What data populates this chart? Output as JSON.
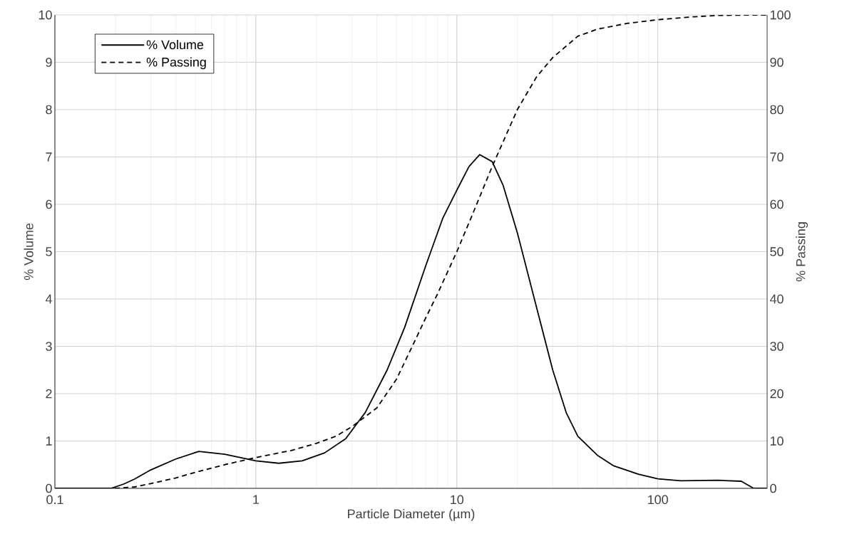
{
  "chart_data": {
    "type": "line",
    "xlabel": "Particle Diameter (µm)",
    "ylabel": "% Volume",
    "y2label": "% Passing",
    "log": "x",
    "xlim": [
      0.1,
      350
    ],
    "xticks": [
      0.1,
      1,
      10,
      100
    ],
    "ylim": [
      0,
      10
    ],
    "yticks": [
      0,
      1,
      2,
      3,
      4,
      5,
      6,
      7,
      8,
      9,
      10
    ],
    "y2lim": [
      0,
      100
    ],
    "y2ticks": [
      0,
      10,
      20,
      30,
      40,
      50,
      60,
      70,
      80,
      90,
      100
    ],
    "grid": true,
    "legend": "top left",
    "marker": "none",
    "series": [
      {
        "name": "% Volume",
        "color": "#000000",
        "line_style": "solid",
        "x": [
          0.1,
          0.19,
          0.22,
          0.25,
          0.3,
          0.4,
          0.52,
          0.7,
          1.0,
          1.3,
          1.7,
          2.2,
          2.8,
          3.5,
          4.5,
          5.5,
          7,
          8.5,
          10,
          11.5,
          13,
          15,
          17,
          20,
          25,
          30,
          35,
          40,
          50,
          60,
          80,
          100,
          130,
          200,
          260,
          300,
          350
        ],
        "values": [
          0,
          0,
          0.09,
          0.2,
          0.39,
          0.62,
          0.78,
          0.72,
          0.58,
          0.53,
          0.58,
          0.75,
          1.05,
          1.6,
          2.5,
          3.4,
          4.7,
          5.7,
          6.3,
          6.8,
          7.05,
          6.9,
          6.4,
          5.4,
          3.8,
          2.5,
          1.6,
          1.1,
          0.7,
          0.48,
          0.3,
          0.2,
          0.16,
          0.17,
          0.15,
          0,
          0
        ]
      },
      {
        "name": "% Passing",
        "color": "#000000",
        "line_style": "dashed",
        "axis": "y2",
        "x": [
          0.1,
          0.2,
          0.25,
          0.3,
          0.4,
          0.5,
          0.7,
          1,
          1.5,
          2,
          2.5,
          3,
          4,
          5,
          6,
          7,
          8,
          10,
          12,
          15,
          20,
          25,
          30,
          40,
          50,
          70,
          100,
          150,
          200,
          300,
          350
        ],
        "values": [
          0,
          0,
          0.3,
          1,
          2.2,
          3.4,
          5,
          6.5,
          8,
          9.5,
          11,
          13,
          17,
          23,
          30,
          36,
          41,
          50,
          58,
          68,
          80,
          87,
          91,
          95.5,
          97,
          98.2,
          99,
          99.6,
          99.9,
          100,
          100
        ]
      }
    ]
  }
}
